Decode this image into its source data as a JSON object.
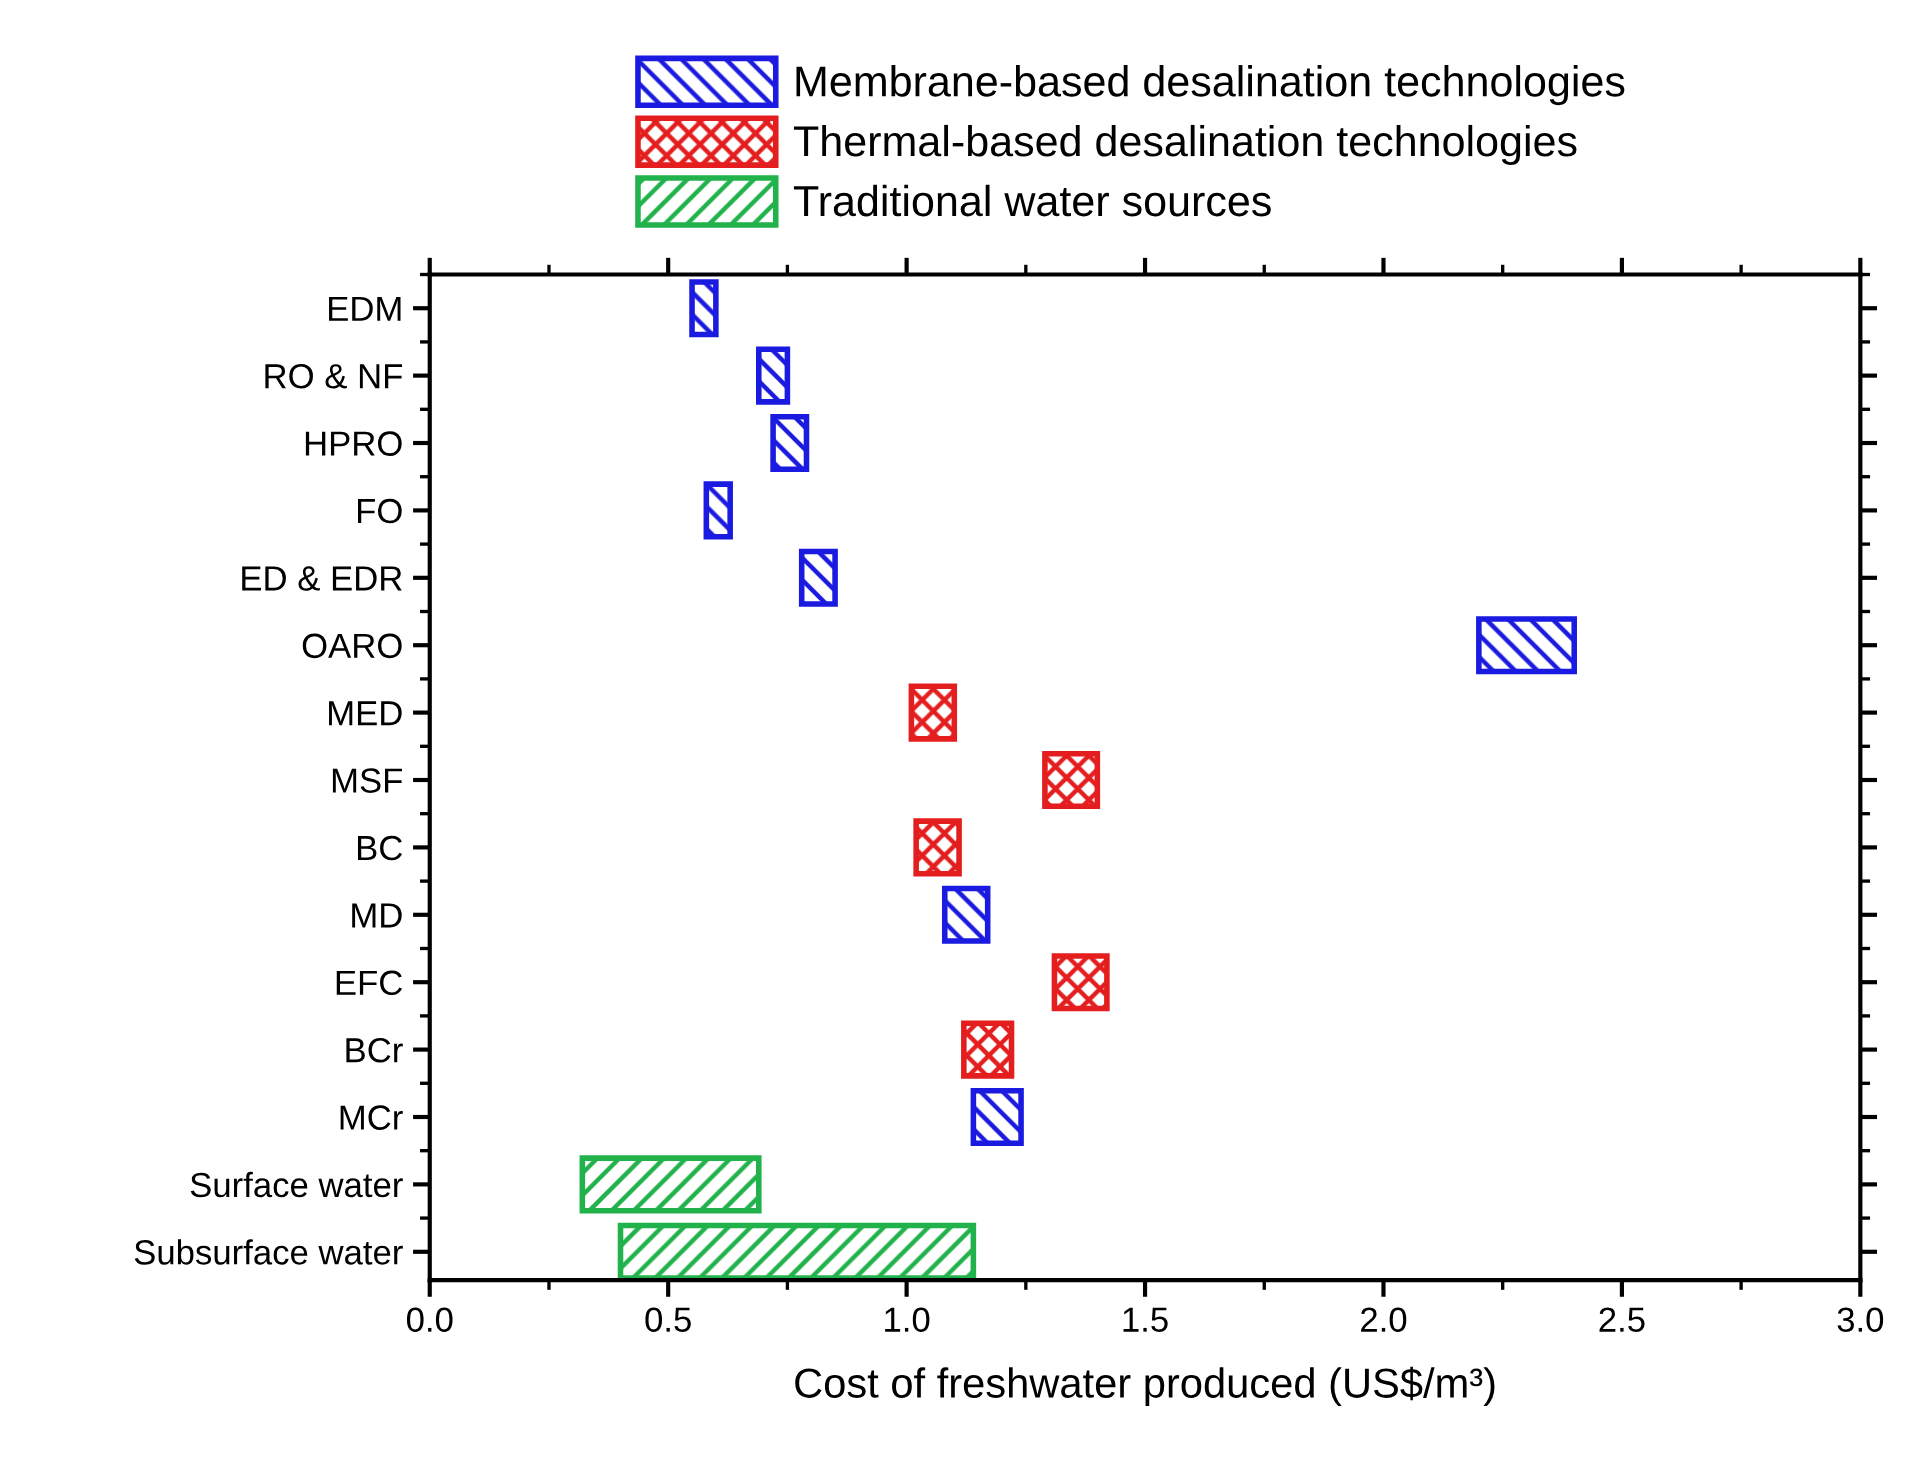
{
  "chart_data": {
    "type": "bar",
    "orientation": "horizontal",
    "xlabel": "Cost of freshwater produced (US$/m³)",
    "categories": [
      "EDM",
      "RO & NF",
      "HPRO",
      "FO",
      "ED & EDR",
      "OARO",
      "MED",
      "MSF",
      "BC",
      "MD",
      "EFC",
      "BCr",
      "MCr",
      "Surface water",
      "Subsurface water"
    ],
    "series": [
      {
        "name": "Membrane-based desalination technologies",
        "color": "#1a1ae0",
        "base": [
          0.55,
          0.69,
          0.72,
          0.58,
          0.78,
          2.2,
          null,
          null,
          null,
          1.08,
          null,
          null,
          1.14,
          null,
          null
        ],
        "values": [
          0.05,
          0.06,
          0.07,
          0.05,
          0.07,
          0.2,
          null,
          null,
          null,
          0.09,
          null,
          null,
          0.1,
          null,
          null
        ]
      },
      {
        "name": "Thermal-based desalination technologies",
        "color": "#e41e1e",
        "base": [
          null,
          null,
          null,
          null,
          null,
          null,
          1.01,
          1.29,
          1.02,
          null,
          1.31,
          1.12,
          null,
          null,
          null
        ],
        "values": [
          null,
          null,
          null,
          null,
          null,
          null,
          0.09,
          0.11,
          0.09,
          null,
          0.11,
          0.1,
          null,
          null,
          null
        ]
      },
      {
        "name": "Traditional water sources",
        "color": "#22b24c",
        "base": [
          null,
          null,
          null,
          null,
          null,
          null,
          null,
          null,
          null,
          null,
          null,
          null,
          null,
          0.32,
          0.4
        ],
        "values": [
          null,
          null,
          null,
          null,
          null,
          null,
          null,
          null,
          null,
          null,
          null,
          null,
          null,
          0.37,
          0.74
        ]
      }
    ],
    "xlim": [
      0,
      3.0
    ],
    "xticks": [
      {
        "value": 0,
        "label": "0.0"
      },
      {
        "value": 0.25,
        "label": null
      },
      {
        "value": 0.5,
        "label": "0.5"
      },
      {
        "value": 0.75,
        "label": null
      },
      {
        "value": 1.0,
        "label": "1.0"
      },
      {
        "value": 1.25,
        "label": null
      },
      {
        "value": 1.5,
        "label": "1.5"
      },
      {
        "value": 1.75,
        "label": null
      },
      {
        "value": 2.0,
        "label": "2.0"
      },
      {
        "value": 2.25,
        "label": null
      },
      {
        "value": 2.5,
        "label": "2.5"
      },
      {
        "value": 2.75,
        "label": null
      },
      {
        "value": 3.0,
        "label": "3.0"
      }
    ],
    "grid": false,
    "legend": "top"
  }
}
